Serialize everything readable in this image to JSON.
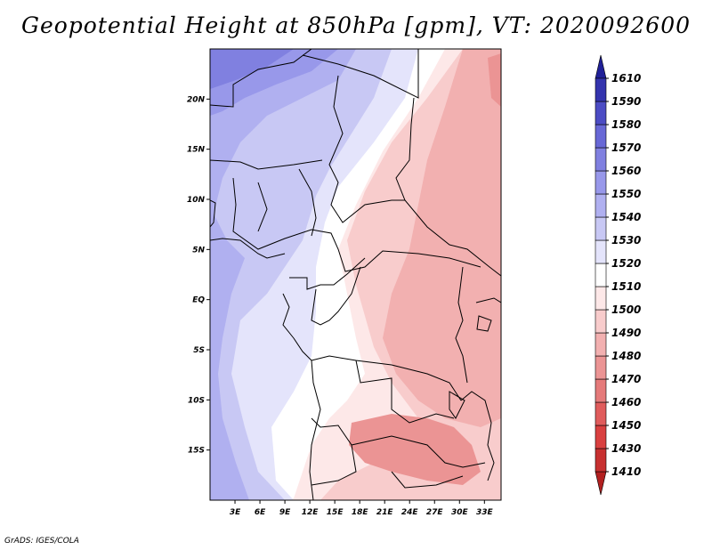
{
  "chart_data": {
    "type": "heatmap",
    "title": "Geopotential Height at 850hPa [gpm], VT: 2020092600",
    "variable": "Geopotential Height",
    "level": "850hPa",
    "units": "gpm",
    "valid_time": "2020092600",
    "x_ticks": [
      "3E",
      "6E",
      "9E",
      "12E",
      "15E",
      "18E",
      "21E",
      "24E",
      "27E",
      "30E",
      "33E"
    ],
    "y_ticks": [
      "20N",
      "15N",
      "10N",
      "5N",
      "EQ",
      "5S",
      "10S",
      "15S"
    ],
    "lon_range": [
      0,
      35
    ],
    "lat_range": [
      -20,
      25
    ],
    "colorbar": {
      "levels": [
        1410,
        1430,
        1450,
        1460,
        1470,
        1480,
        1490,
        1500,
        1510,
        1520,
        1530,
        1540,
        1550,
        1560,
        1570,
        1580,
        1590,
        1610
      ],
      "colors": [
        "#b22020",
        "#c73030",
        "#d94040",
        "#e05c5c",
        "#e57a7a",
        "#eb9494",
        "#f2b0b0",
        "#f8cccc",
        "#fde8e8",
        "#ffffff",
        "#e4e4fb",
        "#c8c8f4",
        "#b0b0f0",
        "#9898ea",
        "#8080e0",
        "#6868d6",
        "#4c4cc4",
        "#3434ae",
        "#202098"
      ]
    },
    "field": {
      "region_values": [
        {
          "region": "north-west",
          "value": 1560
        },
        {
          "region": "west-coast",
          "value": 1540
        },
        {
          "region": "central-west",
          "value": 1530
        },
        {
          "region": "congo-basin",
          "value": 1510
        },
        {
          "region": "east",
          "value": 1500
        },
        {
          "region": "south-east",
          "value": 1480
        }
      ]
    }
  },
  "footer": "GrADS: IGES/COLA"
}
